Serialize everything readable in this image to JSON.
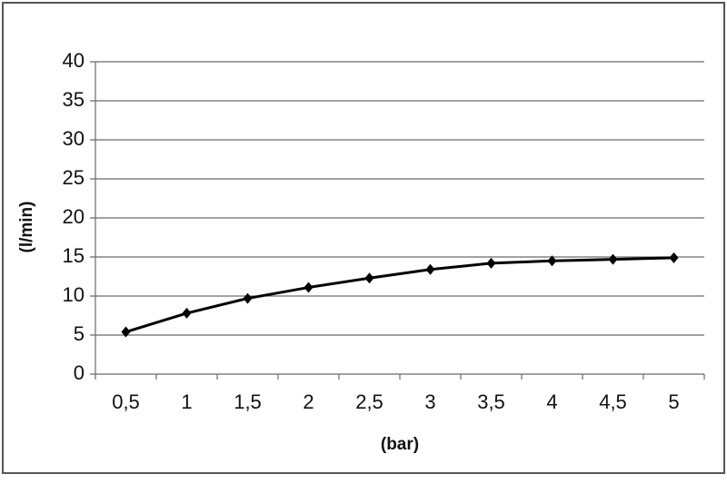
{
  "chart_data": {
    "type": "line",
    "y_label": "(l/min)",
    "x_label": "(bar)",
    "categories": [
      "0,5",
      "1",
      "1,5",
      "2",
      "2,5",
      "3",
      "3,5",
      "4",
      "4,5",
      "5"
    ],
    "values": [
      5.4,
      7.8,
      9.7,
      11.1,
      12.3,
      13.4,
      14.2,
      14.5,
      14.7,
      14.9
    ],
    "color": "#000000",
    "ylim": [
      0,
      40
    ],
    "yticks": [
      0,
      5,
      10,
      15,
      20,
      25,
      30,
      35,
      40
    ],
    "grid": true
  }
}
